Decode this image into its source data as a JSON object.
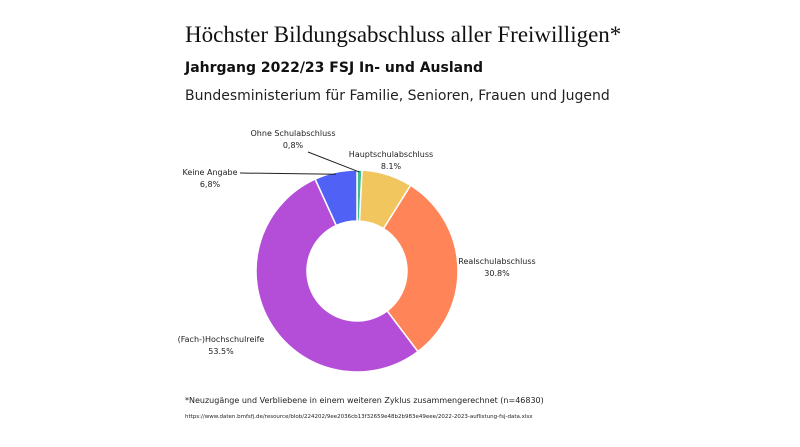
{
  "header": {
    "title": "Höchster Bildungsabschluss aller Freiwilligen*",
    "subtitle": "Jahrgang 2022/23 FSJ In- und Ausland",
    "publisher": "Bundesministerium für Familie, Senioren, Frauen und Jugend"
  },
  "chart_data": {
    "type": "pie",
    "donut": true,
    "slices": [
      {
        "name": "Ohne Schulabschluss",
        "value": 0.8,
        "value_label": "0,8%",
        "color": "#3fbf8f"
      },
      {
        "name": "Hauptschulabschluss",
        "value": 8.1,
        "value_label": "8.1%",
        "color": "#f2c65e"
      },
      {
        "name": "Realschulabschluss",
        "value": 30.8,
        "value_label": "30.8%",
        "color": "#ff8458"
      },
      {
        "name": "(Fach-)Hochschulreife",
        "value": 53.5,
        "value_label": "53.5%",
        "color": "#b44ed8"
      },
      {
        "name": "Keine Angabe",
        "value": 6.8,
        "value_label": "6,8%",
        "color": "#4f62f5"
      }
    ]
  },
  "footer": {
    "footnote": "*Neuzugänge und Verbliebene in einem weiteren Zyklus zusammengerechnet (n=46830)",
    "url": "https://www.daten.bmfsfj.de/resource/blob/224202/9ee2036cb13f32659e48b2b983e49eee/2022-2023-auflistung-fsj-data.xlsx"
  }
}
